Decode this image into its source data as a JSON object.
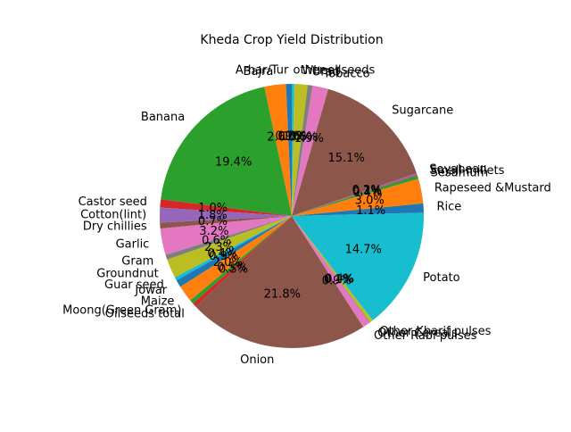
{
  "chart_data": {
    "type": "pie",
    "title": "Kheda Crop Yield Distribution",
    "start_angle": 90,
    "direction": "counterclockwise",
    "slices": [
      {
        "label": "Arhar/Tur",
        "value": 0.7,
        "pct": "0.7%",
        "color": "#1f77b4"
      },
      {
        "label": "Bajra",
        "value": 2.6,
        "pct": "2.6%",
        "color": "#ff7f0e"
      },
      {
        "label": "Banana",
        "value": 19.4,
        "pct": "19.4%",
        "color": "#2ca02c"
      },
      {
        "label": "Castor seed",
        "value": 1.0,
        "pct": "1.0%",
        "color": "#d62728"
      },
      {
        "label": "Cotton(lint)",
        "value": 1.8,
        "pct": "1.8%",
        "color": "#9467bd"
      },
      {
        "label": "Dry chillies",
        "value": 0.7,
        "pct": "0.7%",
        "color": "#8c564b"
      },
      {
        "label": "Garlic",
        "value": 3.2,
        "pct": "3.2%",
        "color": "#e377c2"
      },
      {
        "label": "Gram",
        "value": 0.6,
        "pct": "0.6%",
        "color": "#7f7f7f"
      },
      {
        "label": "Groundnut",
        "value": 2.3,
        "pct": "2.3%",
        "color": "#bcbd22"
      },
      {
        "label": "Guar seed",
        "value": 0.4,
        "pct": "0.4%",
        "color": "#17becf"
      },
      {
        "label": "Jowar",
        "value": 0.9,
        "pct": "0.9%",
        "color": "#1f77b4"
      },
      {
        "label": "Maize",
        "value": 2.0,
        "pct": "2.0%",
        "color": "#ff7f0e"
      },
      {
        "label": "Moong(Green Gram)",
        "value": 0.5,
        "pct": "0.5%",
        "color": "#2ca02c"
      },
      {
        "label": "Oilseeds total",
        "value": 0.5,
        "pct": "0.5%",
        "color": "#d62728"
      },
      {
        "label": "Onion",
        "value": 21.8,
        "pct": "21.8%",
        "color": "#8c564b"
      },
      {
        "label": "Other  Rabi pulses",
        "value": 0.9,
        "pct": "0.9%",
        "color": "#e377c2"
      },
      {
        "label": "Other Cereals",
        "value": 0.1,
        "pct": "0.1%",
        "color": "#7f7f7f"
      },
      {
        "label": "Other Kharif pulses",
        "value": 0.4,
        "pct": "0.4%",
        "color": "#bcbd22"
      },
      {
        "label": "Potato",
        "value": 14.7,
        "pct": "14.7%",
        "color": "#17becf"
      },
      {
        "label": "Rice",
        "value": 1.1,
        "pct": "1.1%",
        "color": "#1f77b4"
      },
      {
        "label": "Rapeseed &Mustard",
        "value": 3.0,
        "pct": "3.0%",
        "color": "#ff7f0e"
      },
      {
        "label": "Sesamum",
        "value": 0.4,
        "pct": "0.4%",
        "color": "#2ca02c"
      },
      {
        "label": "Small millets",
        "value": 0.1,
        "pct": "0.1%",
        "color": "#d62728"
      },
      {
        "label": "Soyabean",
        "value": 0.2,
        "pct": "0.2%",
        "color": "#9467bd"
      },
      {
        "label": "Sugarcane",
        "value": 15.1,
        "pct": "15.1%",
        "color": "#8c564b"
      },
      {
        "label": "Tobacco",
        "value": 1.9,
        "pct": "1.9%",
        "color": "#e377c2"
      },
      {
        "label": "Urad",
        "value": 0.6,
        "pct": "0.6%",
        "color": "#7f7f7f"
      },
      {
        "label": "Wheat",
        "value": 1.6,
        "pct": "1.6%",
        "color": "#bcbd22"
      },
      {
        "label": "other oilseeds",
        "value": 0.3,
        "pct": "0.3%",
        "color": "#17becf"
      }
    ]
  }
}
